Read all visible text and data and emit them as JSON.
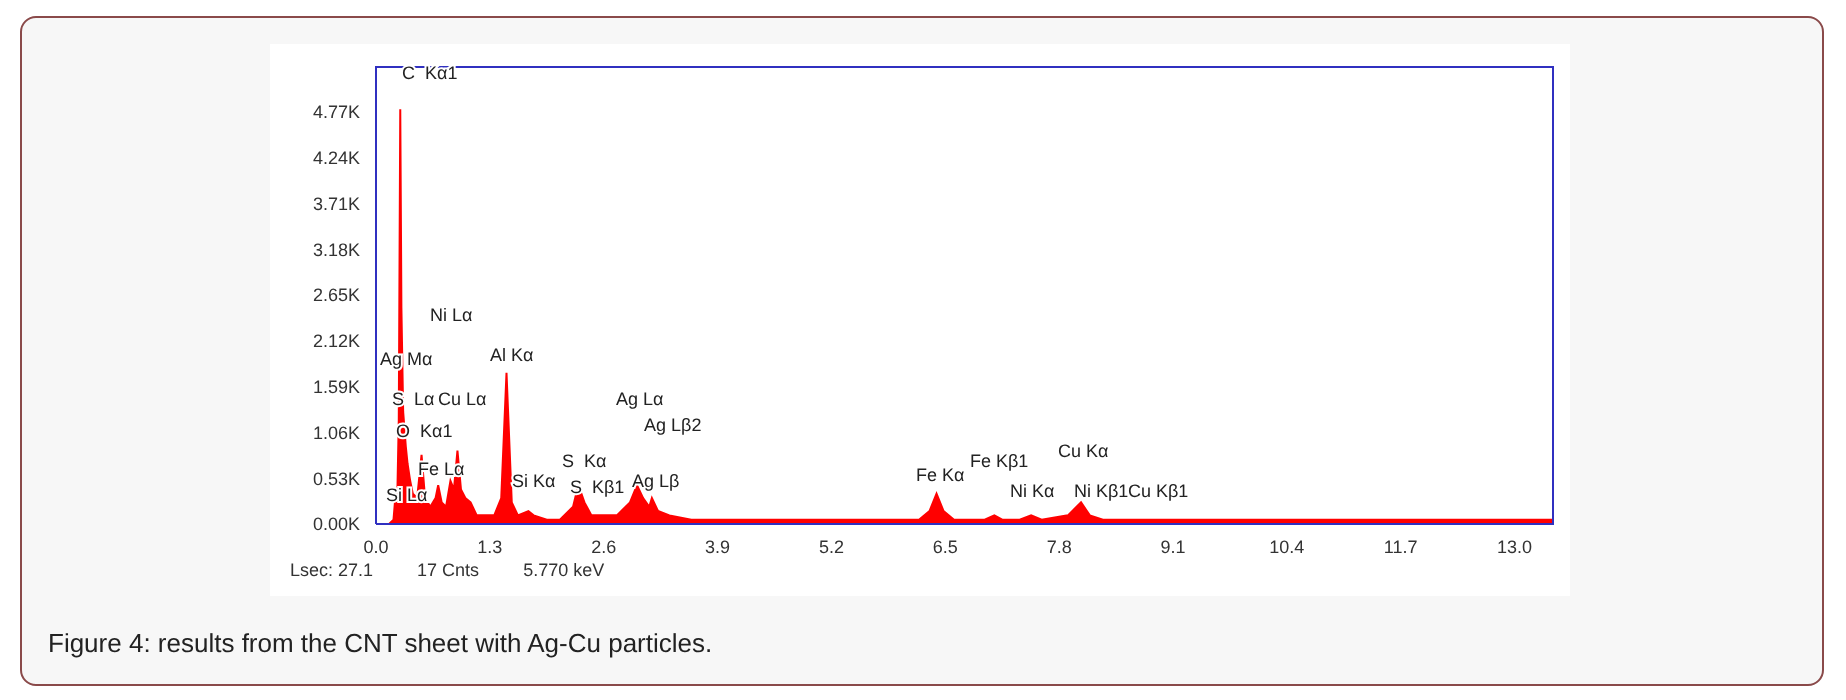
{
  "chart_data": {
    "type": "area",
    "x": [
      0.15,
      0.2,
      0.22,
      0.24,
      0.26,
      0.277,
      0.29,
      0.31,
      0.34,
      0.36,
      0.39,
      0.42,
      0.47,
      0.52,
      0.56,
      0.62,
      0.68,
      0.71,
      0.75,
      0.8,
      0.85,
      0.89,
      0.93,
      0.97,
      1.02,
      1.08,
      1.15,
      1.25,
      1.35,
      1.43,
      1.49,
      1.55,
      1.62,
      1.74,
      1.8,
      1.95,
      2.1,
      2.25,
      2.31,
      2.38,
      2.46,
      2.6,
      2.75,
      2.9,
      2.98,
      3.05,
      3.12,
      3.15,
      3.22,
      3.35,
      3.6,
      3.9,
      4.3,
      4.8,
      5.3,
      5.8,
      6.2,
      6.32,
      6.4,
      6.48,
      6.6,
      6.95,
      7.06,
      7.15,
      7.35,
      7.48,
      7.6,
      7.9,
      8.05,
      8.15,
      8.3,
      8.9,
      9.1,
      9.6,
      10.4,
      11.7,
      13.0,
      13.45
    ],
    "series": [
      {
        "color": "#ff0000",
        "values": [
          0,
          50,
          300,
          150,
          1200,
          4800,
          2500,
          1300,
          900,
          700,
          500,
          350,
          300,
          800,
          300,
          200,
          300,
          450,
          250,
          200,
          500,
          400,
          850,
          400,
          300,
          250,
          100,
          100,
          100,
          300,
          1750,
          250,
          100,
          150,
          100,
          50,
          50,
          200,
          450,
          250,
          100,
          100,
          100,
          250,
          450,
          300,
          200,
          300,
          150,
          100,
          50,
          50,
          50,
          50,
          50,
          50,
          50,
          150,
          350,
          150,
          50,
          50,
          100,
          50,
          50,
          100,
          50,
          100,
          250,
          100,
          50,
          50,
          50,
          50,
          50,
          50,
          50,
          50
        ]
      }
    ],
    "xlim": [
      0,
      13.45
    ],
    "xticks": [
      {
        "value": 0,
        "label": "0.0"
      },
      1.3,
      2.6,
      3.9,
      5.2,
      6.5,
      7.8,
      9.1,
      10.4,
      11.7,
      {
        "value": 13,
        "label": "13.0"
      }
    ],
    "ylim": [
      0,
      5300
    ],
    "yticks": [
      {
        "value": 0,
        "label": "0.00K"
      },
      {
        "value": 530,
        "label": "0.53K"
      },
      {
        "value": 1060,
        "label": "1.06K"
      },
      {
        "value": 1590,
        "label": "1.59K"
      },
      {
        "value": 2120,
        "label": "2.12K"
      },
      {
        "value": 2650,
        "label": "2.65K"
      },
      {
        "value": 3180,
        "label": "3.18K"
      },
      {
        "value": 3710,
        "label": "3.71K"
      },
      {
        "value": 4240,
        "label": "4.24K"
      },
      {
        "value": 4770,
        "label": "4.77K"
      }
    ],
    "grid": false,
    "legend": false,
    "annotations": [
      "C  Kα1",
      "Ni Lα",
      "Ag Mα",
      "Al Kα",
      "S  Lα",
      "Cu Lα",
      "O  Kα1",
      "Fe Lα",
      "Si Kα",
      "Si Lα",
      "S  Kα",
      "S  Kβ1",
      "Ag Lα",
      "Ag Lβ2",
      "Ag Lβ",
      "Fe Kα",
      "Fe Kβ1",
      "Cu Kα",
      "Ni Kα",
      "Ni Kβ1",
      "Cu Kβ1",
      "Lsec: 27.1",
      "17 Cnts",
      "5.770 keV",
      "Figure 4: results from the CNT sheet with Ag-Cu particles."
    ]
  }
}
